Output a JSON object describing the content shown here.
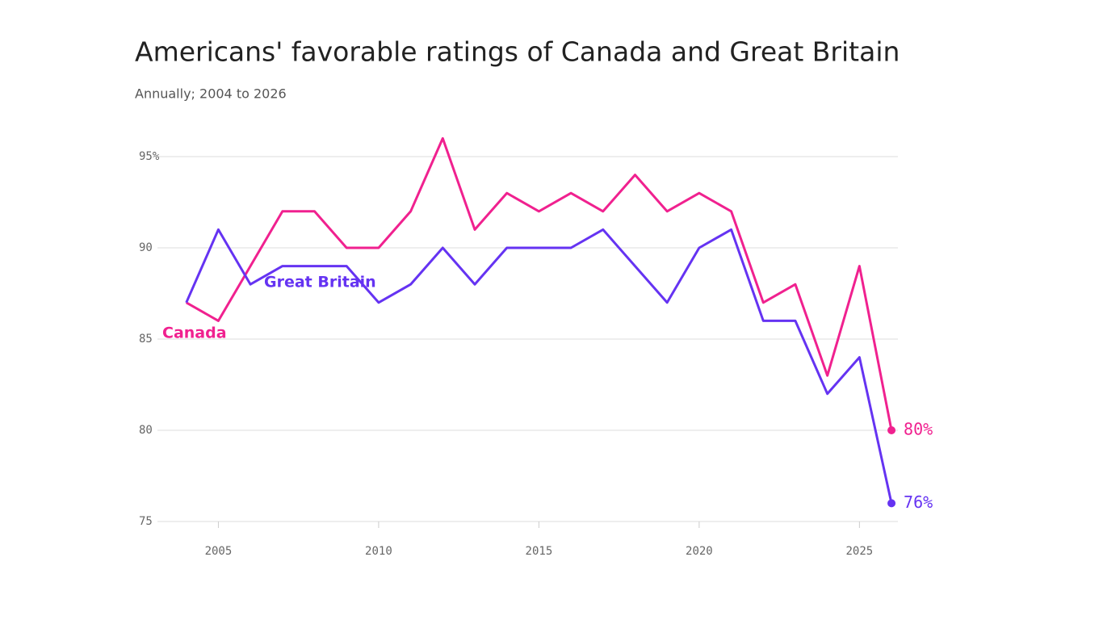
{
  "chart_data": {
    "type": "line",
    "title": "Americans' favorable ratings of Canada and Great Britain",
    "subtitle": "Annually; 2004 to 2026",
    "x": [
      2004,
      2005,
      2006,
      2007,
      2008,
      2009,
      2010,
      2011,
      2012,
      2013,
      2014,
      2015,
      2016,
      2017,
      2018,
      2019,
      2020,
      2021,
      2022,
      2023,
      2024,
      2025,
      2026
    ],
    "series": [
      {
        "name": "Canada",
        "color": "#f0218f",
        "values": [
          87,
          86,
          89,
          92,
          92,
          90,
          90,
          92,
          96,
          91,
          93,
          92,
          93,
          92,
          94,
          92,
          93,
          92,
          87,
          88,
          83,
          89,
          80
        ],
        "value_labels": [
          null,
          null,
          null,
          null,
          null,
          null,
          null,
          null,
          null,
          null,
          null,
          null,
          null,
          null,
          null,
          null,
          null,
          null,
          null,
          null,
          null,
          null,
          "80%"
        ]
      },
      {
        "name": "Great Britain",
        "color": "#6533f2",
        "values": [
          87,
          91,
          88,
          89,
          89,
          89,
          87,
          88,
          90,
          88,
          90,
          90,
          90,
          91,
          89,
          87,
          90,
          91,
          86,
          86,
          82,
          84,
          76
        ],
        "value_labels": [
          null,
          null,
          null,
          null,
          null,
          null,
          null,
          null,
          null,
          null,
          null,
          null,
          null,
          null,
          null,
          null,
          null,
          null,
          null,
          null,
          null,
          null,
          "76%"
        ]
      }
    ],
    "xlim": [
      2003.1,
      2026.2
    ],
    "xticks": [
      2005,
      2010,
      2015,
      2020,
      2025
    ],
    "ylim": [
      75,
      96
    ],
    "yticks": [
      75,
      80,
      85,
      90,
      {
        "value": 95,
        "label": "95%"
      }
    ],
    "grid": true
  }
}
